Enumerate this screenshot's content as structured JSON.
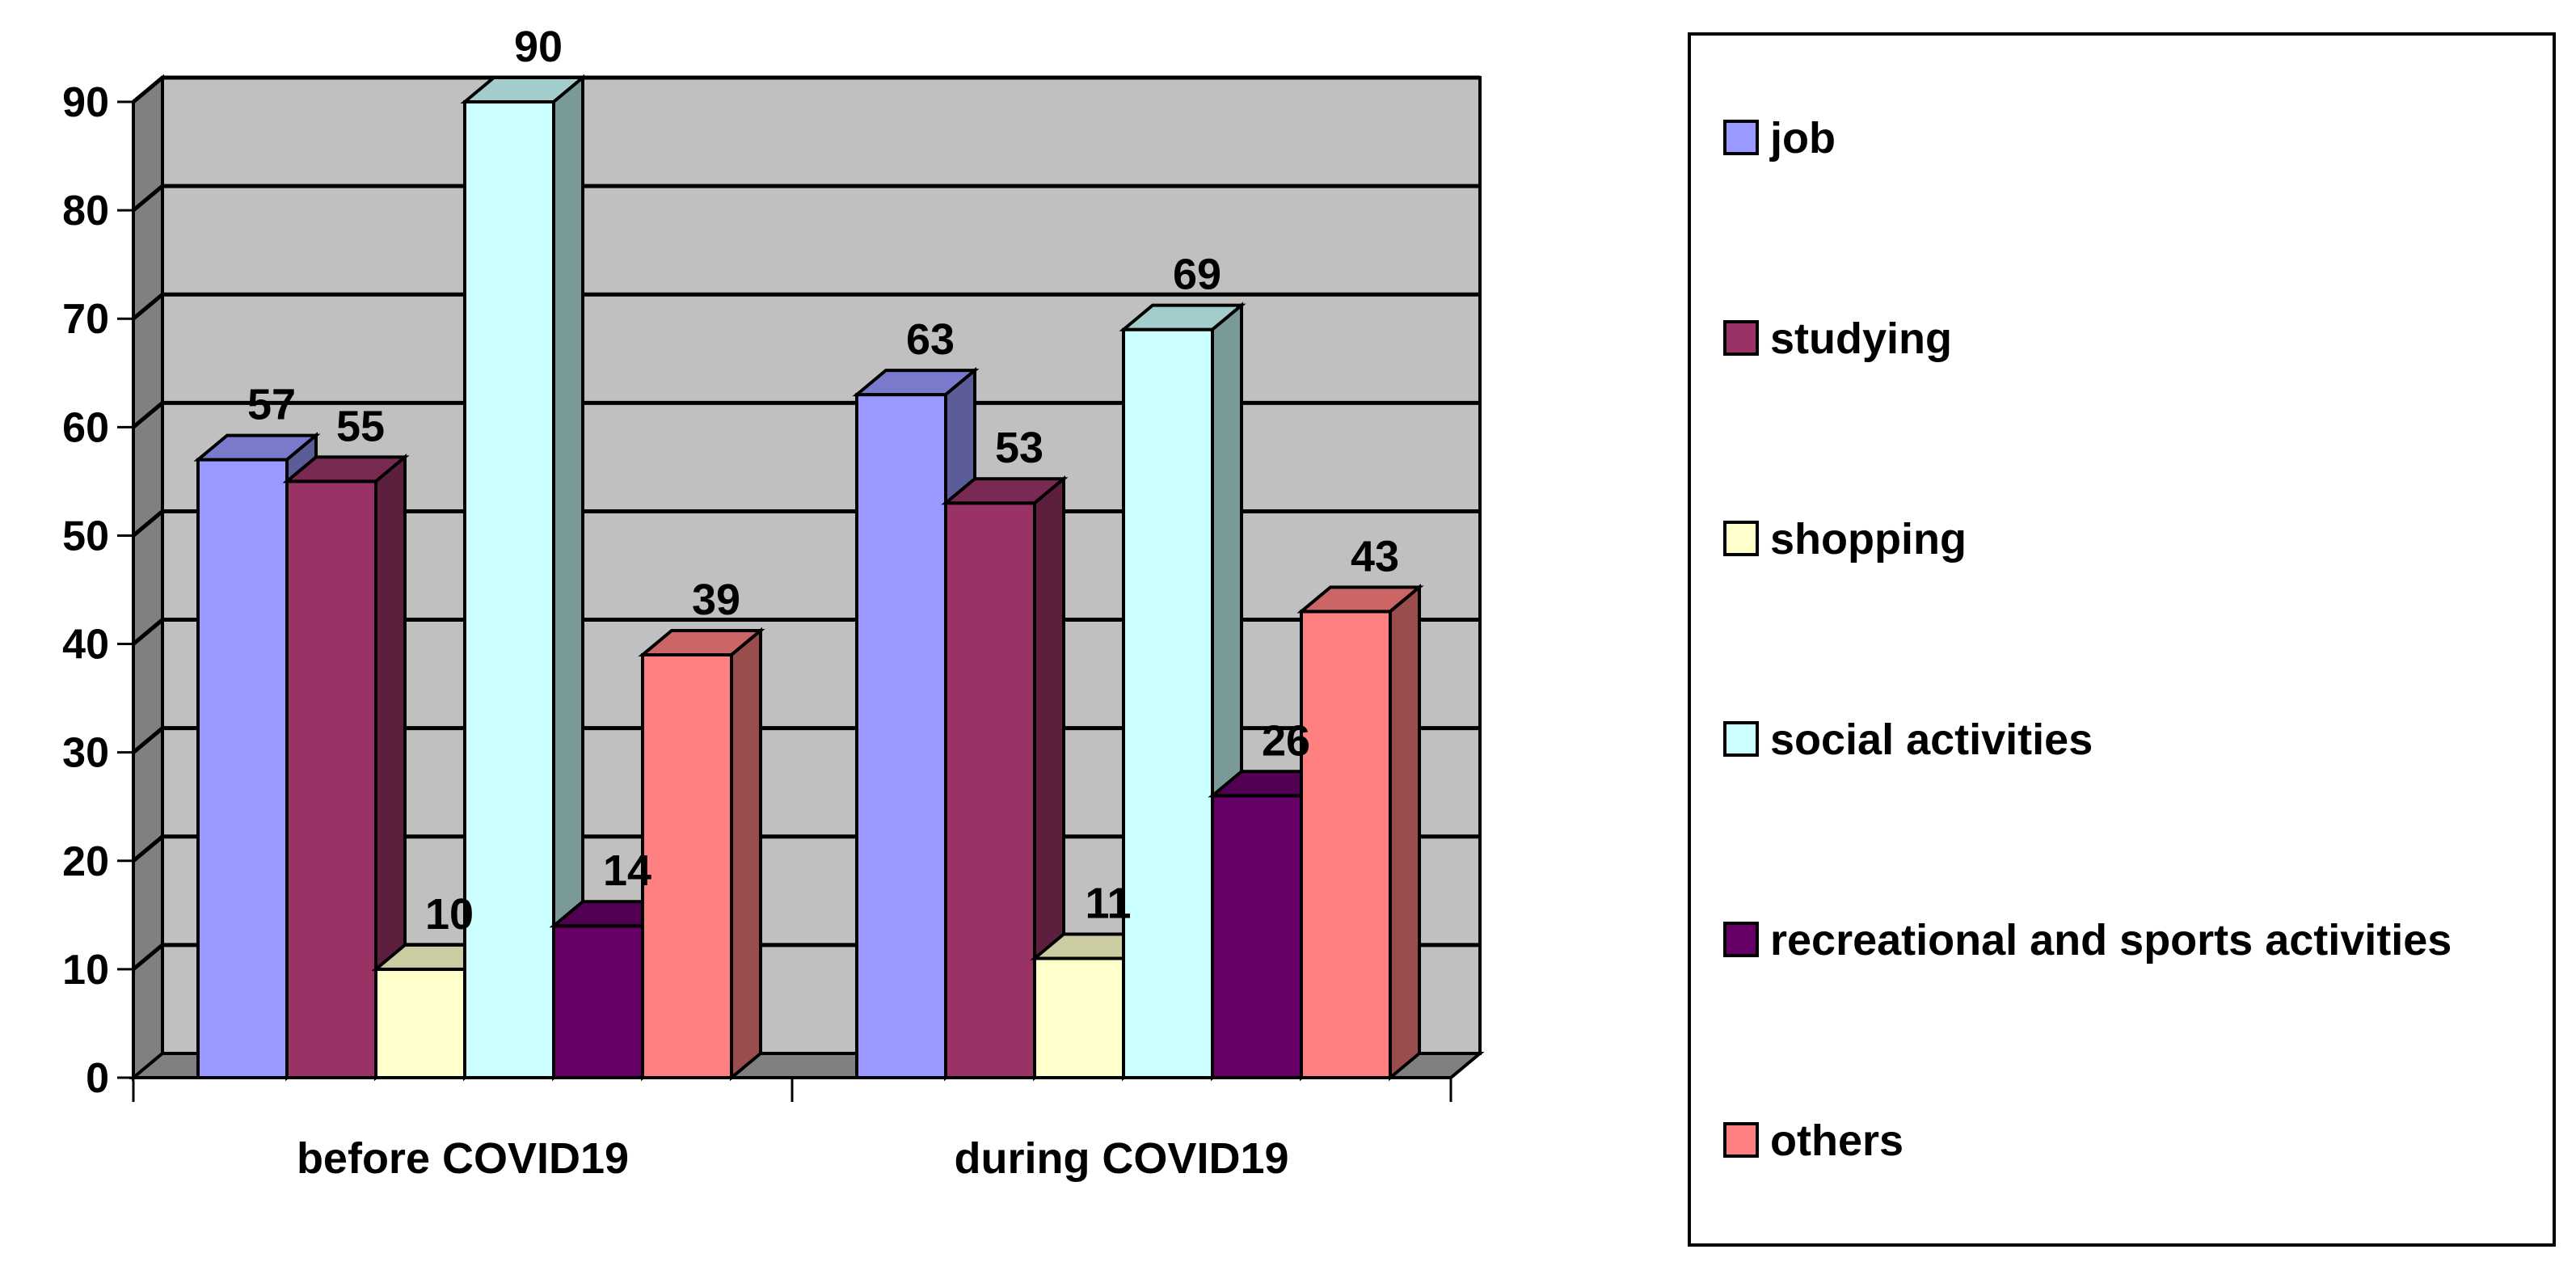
{
  "chart_data": {
    "type": "bar",
    "categories": [
      "before COVID19",
      "during COVID19"
    ],
    "series": [
      {
        "name": "job",
        "values": [
          57,
          63
        ],
        "color": "#9999FF"
      },
      {
        "name": "studying",
        "values": [
          55,
          53
        ],
        "color": "#993366"
      },
      {
        "name": "shopping",
        "values": [
          10,
          11
        ],
        "color": "#FFFFCC"
      },
      {
        "name": "social activities",
        "values": [
          90,
          69
        ],
        "color": "#CCFFFF"
      },
      {
        "name": "recreational and sports activities",
        "values": [
          14,
          26
        ],
        "color": "#660066"
      },
      {
        "name": "others",
        "values": [
          39,
          43
        ],
        "color": "#FF8080"
      }
    ],
    "ylim": [
      0,
      90
    ],
    "yticks": [
      0,
      10,
      20,
      30,
      40,
      50,
      60,
      70,
      80,
      90
    ],
    "grid": true,
    "style": "3d-clustered",
    "plot_background": "#C0C0C0",
    "legend_position": "right",
    "data_labels": true,
    "title": "",
    "xlabel": "",
    "ylabel": ""
  }
}
